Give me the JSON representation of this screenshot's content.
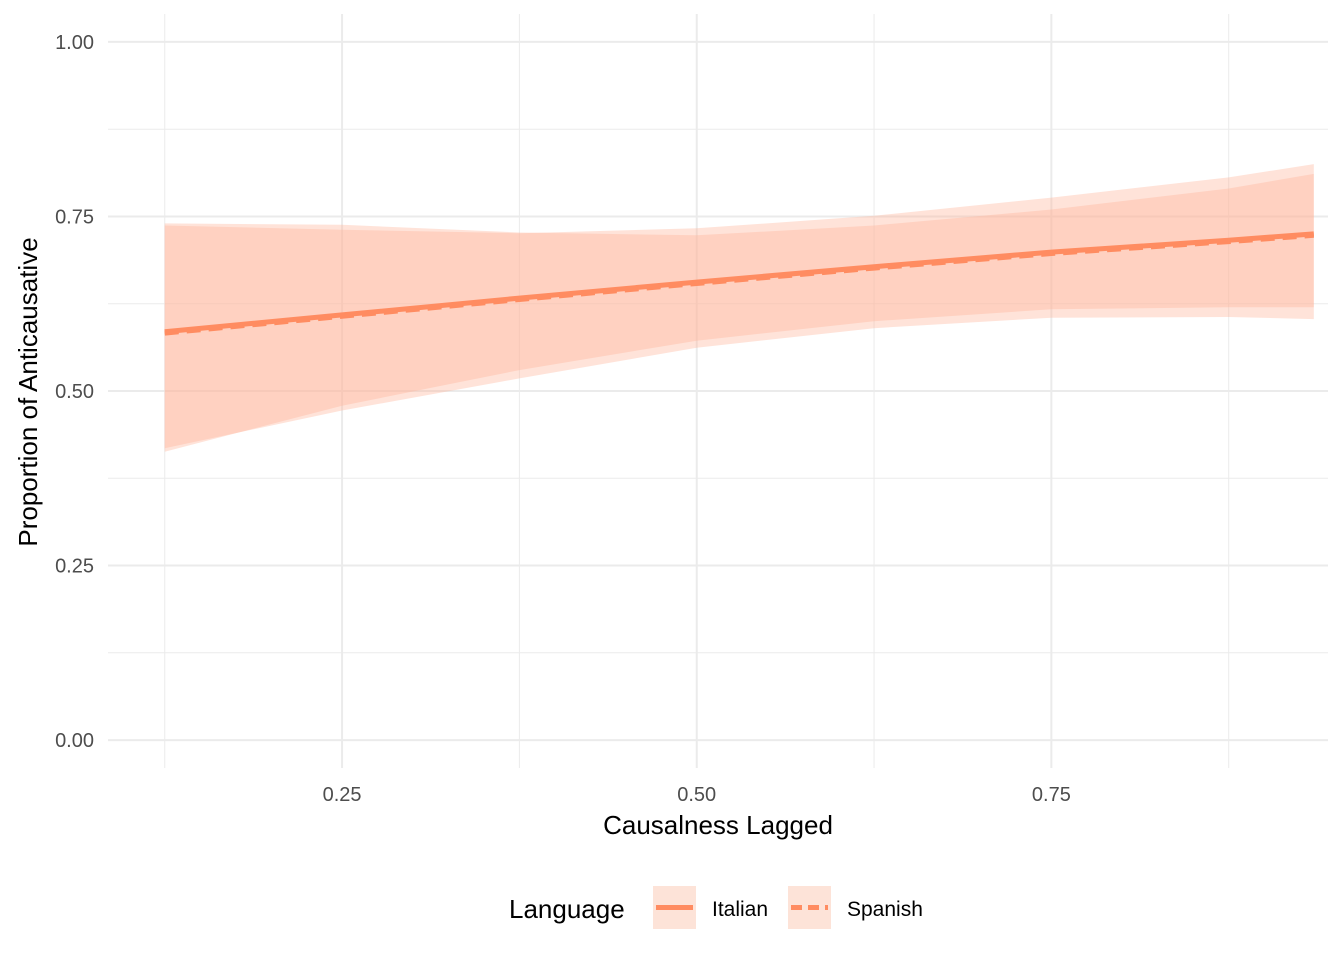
{
  "chart_data": {
    "type": "line",
    "title": "",
    "xlabel": "Causalness Lagged",
    "ylabel": "Proportion of Anticausative",
    "xlim": [
      0.085,
      0.945
    ],
    "ylim": [
      -0.04,
      1.04
    ],
    "x_ticks": [
      0.25,
      0.5,
      0.75
    ],
    "x_tick_labels": [
      "0.25",
      "0.50",
      "0.75"
    ],
    "y_ticks": [
      0.0,
      0.25,
      0.5,
      0.75,
      1.0
    ],
    "y_tick_labels": [
      "0.00",
      "0.25",
      "0.50",
      "0.75",
      "1.00"
    ],
    "grid": true,
    "legend": {
      "title": "Language",
      "position": "bottom",
      "entries": [
        "Italian",
        "Spanish"
      ]
    },
    "colors": {
      "line": "#FF8C61",
      "ribbon": "#FFB59A",
      "grid": "#EBEBEB",
      "legend_key_bg": "#FDE3D8"
    },
    "series": [
      {
        "name": "Italian",
        "linetype": "solid",
        "x": [
          0.125,
          0.25,
          0.375,
          0.5,
          0.625,
          0.75,
          0.875,
          0.935
        ],
        "y": [
          0.585,
          0.609,
          0.633,
          0.656,
          0.678,
          0.699,
          0.716,
          0.725
        ],
        "ymin": [
          0.413,
          0.479,
          0.53,
          0.572,
          0.6,
          0.617,
          0.62,
          0.62
        ],
        "ymax": [
          0.737,
          0.731,
          0.726,
          0.733,
          0.751,
          0.777,
          0.806,
          0.825
        ]
      },
      {
        "name": "Spanish",
        "linetype": "dashed",
        "x": [
          0.125,
          0.25,
          0.375,
          0.5,
          0.625,
          0.75,
          0.875,
          0.935
        ],
        "y": [
          0.583,
          0.607,
          0.631,
          0.654,
          0.676,
          0.697,
          0.714,
          0.723
        ],
        "ymin": [
          0.418,
          0.472,
          0.518,
          0.562,
          0.59,
          0.605,
          0.606,
          0.603
        ],
        "ymax": [
          0.74,
          0.738,
          0.727,
          0.723,
          0.737,
          0.76,
          0.79,
          0.811
        ]
      }
    ]
  }
}
